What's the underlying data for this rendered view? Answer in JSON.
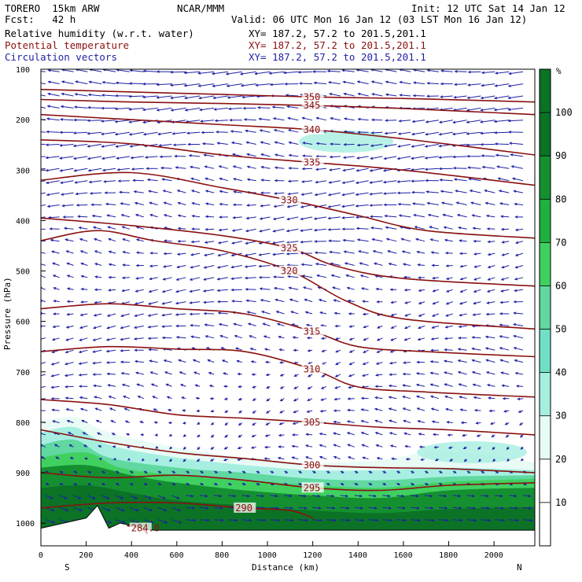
{
  "header": {
    "model": "TORERO  15km ARW",
    "center": "NCAR/MMM",
    "init": "Init: 12 UTC Sat 14 Jan 12",
    "fcst": "Fcst:   42 h",
    "valid": "Valid: 06 UTC Mon 16 Jan 12 (03 LST Mon 16 Jan 12)",
    "fields": [
      {
        "label": "Relative humidity (w.r.t. water)",
        "xy": "XY= 187.2, 57.2 to 201.5,201.1",
        "color": "#000000"
      },
      {
        "label": "Potential temperature",
        "xy": "XY= 187.2, 57.2 to 201.5,201.1",
        "color": "#8a1010"
      },
      {
        "label": "Circulation vectors",
        "xy": "XY= 187.2, 57.2 to 201.5,201.1",
        "color": "#1f1fa6"
      }
    ]
  },
  "chart_data": {
    "type": "contour-cross-section",
    "xlabel": "Distance (km)",
    "ylabel": "Pressure (hPa)",
    "xlim": [
      0,
      2180
    ],
    "ylim": [
      1045,
      100
    ],
    "x_ticks": [
      0,
      200,
      400,
      600,
      800,
      1000,
      1200,
      1400,
      1600,
      1800,
      2000
    ],
    "x_tick_labels": [
      "0",
      "200",
      "400",
      "600",
      "800",
      "1000",
      "1200",
      "1400",
      "1600",
      "1800",
      "2000"
    ],
    "y_ticks": [
      100,
      200,
      300,
      400,
      500,
      600,
      700,
      800,
      900,
      1000
    ],
    "y_tick_labels": [
      "100",
      "200",
      "300",
      "400",
      "500",
      "600",
      "700",
      "800",
      "900",
      "1000"
    ],
    "x_end_labels": {
      "left": "S",
      "right": "N"
    },
    "colorbar": {
      "unit": "%",
      "levels": [
        10,
        20,
        30,
        40,
        50,
        60,
        70,
        80,
        90,
        100
      ],
      "labels": [
        "10",
        "20",
        "30",
        "40",
        "50",
        "60",
        "70",
        "80",
        "90",
        "100"
      ],
      "colors": [
        "#ffffff",
        "#ffffff",
        "#e8fbf5",
        "#a6efe0",
        "#6fe0c6",
        "#60d8a0",
        "#40d060",
        "#20b040",
        "#159030",
        "#0b7226"
      ]
    },
    "theta_contours": [
      {
        "label": "350",
        "level": 350,
        "points": [
          [
            0,
            140
          ],
          [
            400,
            145
          ],
          [
            800,
            150
          ],
          [
            1200,
            155
          ],
          [
            1600,
            158
          ],
          [
            2180,
            165
          ]
        ]
      },
      {
        "label": "345",
        "level": 345,
        "points": [
          [
            0,
            160
          ],
          [
            400,
            165
          ],
          [
            800,
            168
          ],
          [
            1200,
            172
          ],
          [
            1600,
            178
          ],
          [
            2180,
            190
          ]
        ]
      },
      {
        "label": "340",
        "level": 340,
        "points": [
          [
            0,
            190
          ],
          [
            400,
            200
          ],
          [
            800,
            210
          ],
          [
            1200,
            220
          ],
          [
            1600,
            238
          ],
          [
            2180,
            270
          ]
        ]
      },
      {
        "label": "335",
        "level": 335,
        "points": [
          [
            0,
            240
          ],
          [
            400,
            248
          ],
          [
            800,
            270
          ],
          [
            1200,
            285
          ],
          [
            1600,
            300
          ],
          [
            2180,
            330
          ]
        ]
      },
      {
        "label": "330",
        "level": 330,
        "points": [
          [
            0,
            320
          ],
          [
            400,
            305
          ],
          [
            800,
            335
          ],
          [
            1100,
            360
          ],
          [
            1400,
            390
          ],
          [
            1700,
            420
          ],
          [
            2180,
            435
          ]
        ]
      },
      {
        "label": "325",
        "level": 325,
        "points": [
          [
            0,
            395
          ],
          [
            400,
            410
          ],
          [
            800,
            430
          ],
          [
            1100,
            455
          ],
          [
            1300,
            490
          ],
          [
            1600,
            515
          ],
          [
            2180,
            530
          ]
        ]
      },
      {
        "label": "320",
        "level": 320,
        "points": [
          [
            0,
            440
          ],
          [
            250,
            420
          ],
          [
            500,
            440
          ],
          [
            800,
            460
          ],
          [
            1100,
            500
          ],
          [
            1350,
            560
          ],
          [
            1600,
            595
          ],
          [
            2180,
            615
          ]
        ]
      },
      {
        "label": "315",
        "level": 315,
        "points": [
          [
            0,
            575
          ],
          [
            300,
            565
          ],
          [
            600,
            575
          ],
          [
            900,
            585
          ],
          [
            1200,
            620
          ],
          [
            1400,
            650
          ],
          [
            1700,
            660
          ],
          [
            2180,
            670
          ]
        ]
      },
      {
        "label": "310",
        "level": 310,
        "points": [
          [
            0,
            660
          ],
          [
            300,
            650
          ],
          [
            600,
            655
          ],
          [
            900,
            660
          ],
          [
            1200,
            695
          ],
          [
            1400,
            730
          ],
          [
            1700,
            740
          ],
          [
            2180,
            750
          ]
        ]
      },
      {
        "label": "305",
        "level": 305,
        "points": [
          [
            0,
            755
          ],
          [
            300,
            765
          ],
          [
            600,
            785
          ],
          [
            900,
            792
          ],
          [
            1200,
            800
          ],
          [
            1500,
            810
          ],
          [
            1800,
            815
          ],
          [
            2180,
            825
          ]
        ]
      },
      {
        "label": "300",
        "level": 300,
        "points": [
          [
            0,
            815
          ],
          [
            300,
            840
          ],
          [
            600,
            860
          ],
          [
            900,
            872
          ],
          [
            1200,
            885
          ],
          [
            1500,
            890
          ],
          [
            1800,
            892
          ],
          [
            2180,
            900
          ]
        ]
      },
      {
        "label": "295",
        "level": 295,
        "points": [
          [
            0,
            900
          ],
          [
            300,
            910
          ],
          [
            600,
            905
          ],
          [
            900,
            915
          ],
          [
            1200,
            930
          ],
          [
            1500,
            935
          ],
          [
            1800,
            925
          ],
          [
            2180,
            920
          ]
        ]
      },
      {
        "label": "290",
        "level": 290,
        "points": [
          [
            0,
            970
          ],
          [
            300,
            960
          ],
          [
            600,
            960
          ],
          [
            900,
            970
          ],
          [
            1100,
            975
          ],
          [
            1200,
            990
          ]
        ]
      },
      {
        "label": "284.0",
        "level": 284,
        "points": [
          [
            380,
            1005
          ],
          [
            440,
            1010
          ],
          [
            470,
            1020
          ]
        ]
      }
    ],
    "terrain_pressure": [
      [
        0,
        1010
      ],
      [
        100,
        1000
      ],
      [
        200,
        990
      ],
      [
        250,
        965
      ],
      [
        300,
        1010
      ],
      [
        350,
        1000
      ],
      [
        400,
        1005
      ],
      [
        450,
        1012
      ],
      [
        500,
        1014
      ],
      [
        2180,
        1014
      ]
    ]
  }
}
